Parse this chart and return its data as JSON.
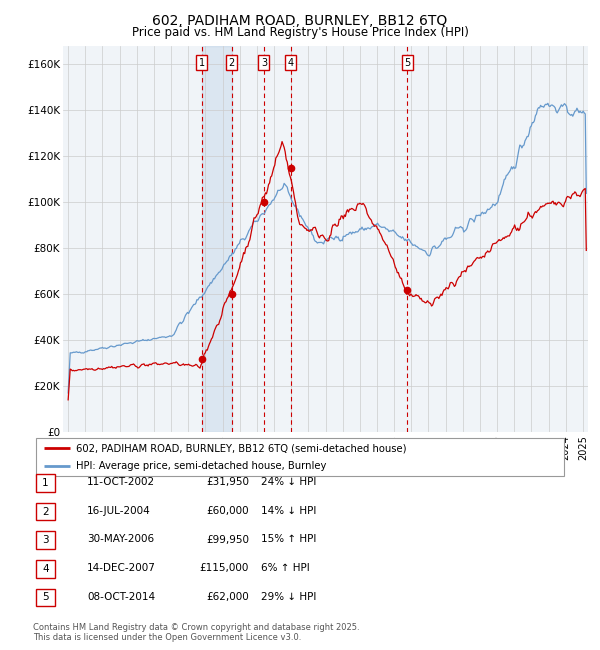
{
  "title": "602, PADIHAM ROAD, BURNLEY, BB12 6TQ",
  "subtitle": "Price paid vs. HM Land Registry's House Price Index (HPI)",
  "ylabel_vals": [
    "£0",
    "£20K",
    "£40K",
    "£60K",
    "£80K",
    "£100K",
    "£120K",
    "£140K",
    "£160K"
  ],
  "yticks": [
    0,
    20000,
    40000,
    60000,
    80000,
    100000,
    120000,
    140000,
    160000
  ],
  "ylim": [
    0,
    168000
  ],
  "xlim_start": 1994.7,
  "xlim_end": 2025.3,
  "sale_dates": [
    2002.78,
    2004.54,
    2006.41,
    2007.96,
    2014.77
  ],
  "sale_prices": [
    31950,
    60000,
    99950,
    115000,
    62000
  ],
  "sale_labels": [
    "1",
    "2",
    "3",
    "4",
    "5"
  ],
  "sale_dates_str": [
    "11-OCT-2002",
    "16-JUL-2004",
    "30-MAY-2006",
    "14-DEC-2007",
    "08-OCT-2014"
  ],
  "sale_prices_str": [
    "£31,950",
    "£60,000",
    "£99,950",
    "£115,000",
    "£62,000"
  ],
  "sale_hpi_str": [
    "24% ↓ HPI",
    "14% ↓ HPI",
    "15% ↑ HPI",
    "6% ↑ HPI",
    "29% ↓ HPI"
  ],
  "legend_label_red": "602, PADIHAM ROAD, BURNLEY, BB12 6TQ (semi-detached house)",
  "legend_label_blue": "HPI: Average price, semi-detached house, Burnley",
  "footer": "Contains HM Land Registry data © Crown copyright and database right 2025.\nThis data is licensed under the Open Government Licence v3.0.",
  "red_color": "#cc0000",
  "blue_color": "#6699cc",
  "blue_fill": "#ddeeff",
  "bg_color": "#f0f4f8",
  "grid_color": "#cccccc",
  "highlight_pair": [
    0,
    1
  ]
}
